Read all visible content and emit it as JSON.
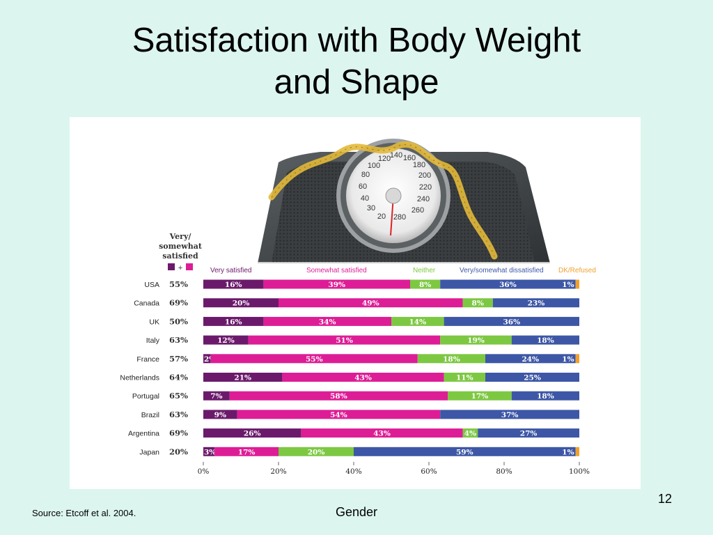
{
  "slide": {
    "title_line1": "Satisfaction with Body Weight",
    "title_line2": "and Shape",
    "source": "Source: Etcoff et al. 2004.",
    "footer": "Gender",
    "page_number": "12"
  },
  "chart_data": {
    "type": "bar",
    "orientation": "horizontal",
    "stacked": true,
    "summary_header": [
      "Very/",
      "somewhat",
      "satisfied"
    ],
    "summary_legend_plus": "+",
    "categories": [
      "USA",
      "Canada",
      "UK",
      "Italy",
      "France",
      "Netherlands",
      "Portugal",
      "Brazil",
      "Argentina",
      "Japan"
    ],
    "summary_values": [
      "55%",
      "69%",
      "50%",
      "63%",
      "57%",
      "64%",
      "65%",
      "63%",
      "69%",
      "20%"
    ],
    "series": [
      {
        "name": "Very satisfied",
        "color": "#6b1a6b",
        "values": [
          16,
          20,
          16,
          12,
          2,
          21,
          7,
          9,
          26,
          3
        ],
        "labels": [
          "16%",
          "20%",
          "16%",
          "12%",
          "2%",
          "21%",
          "7%",
          "9%",
          "26%",
          "3%"
        ]
      },
      {
        "name": "Somewhat satisfied",
        "color": "#dd1d96",
        "values": [
          39,
          49,
          34,
          51,
          55,
          43,
          58,
          54,
          43,
          17
        ],
        "labels": [
          "39%",
          "49%",
          "34%",
          "51%",
          "55%",
          "43%",
          "58%",
          "54%",
          "43%",
          "17%"
        ]
      },
      {
        "name": "Neither",
        "color": "#7dc843",
        "values": [
          8,
          8,
          14,
          19,
          18,
          11,
          17,
          0,
          4,
          20
        ],
        "labels": [
          "8%",
          "8%",
          "14%",
          "19%",
          "18%",
          "11%",
          "17%",
          "",
          "4%",
          "20%"
        ]
      },
      {
        "name": "Very/somewhat dissatisfied",
        "color": "#3d57a6",
        "values": [
          36,
          23,
          36,
          18,
          24,
          25,
          18,
          37,
          27,
          59
        ],
        "labels": [
          "36%",
          "23%",
          "36%",
          "18%",
          "24%",
          "25%",
          "18%",
          "37%",
          "27%",
          "59%"
        ]
      },
      {
        "name": "DK/Refused",
        "color": "#f0a030",
        "values": [
          1,
          0,
          0,
          0,
          1,
          0,
          0,
          0,
          0,
          1
        ],
        "labels": [
          "1%",
          "",
          "",
          "",
          "1%",
          "",
          "",
          "",
          "",
          "1%"
        ]
      }
    ],
    "x_ticks": [
      "0%",
      "20%",
      "40%",
      "60%",
      "80%",
      "100%"
    ],
    "xlim": [
      0,
      100
    ],
    "legend_position": "top"
  }
}
